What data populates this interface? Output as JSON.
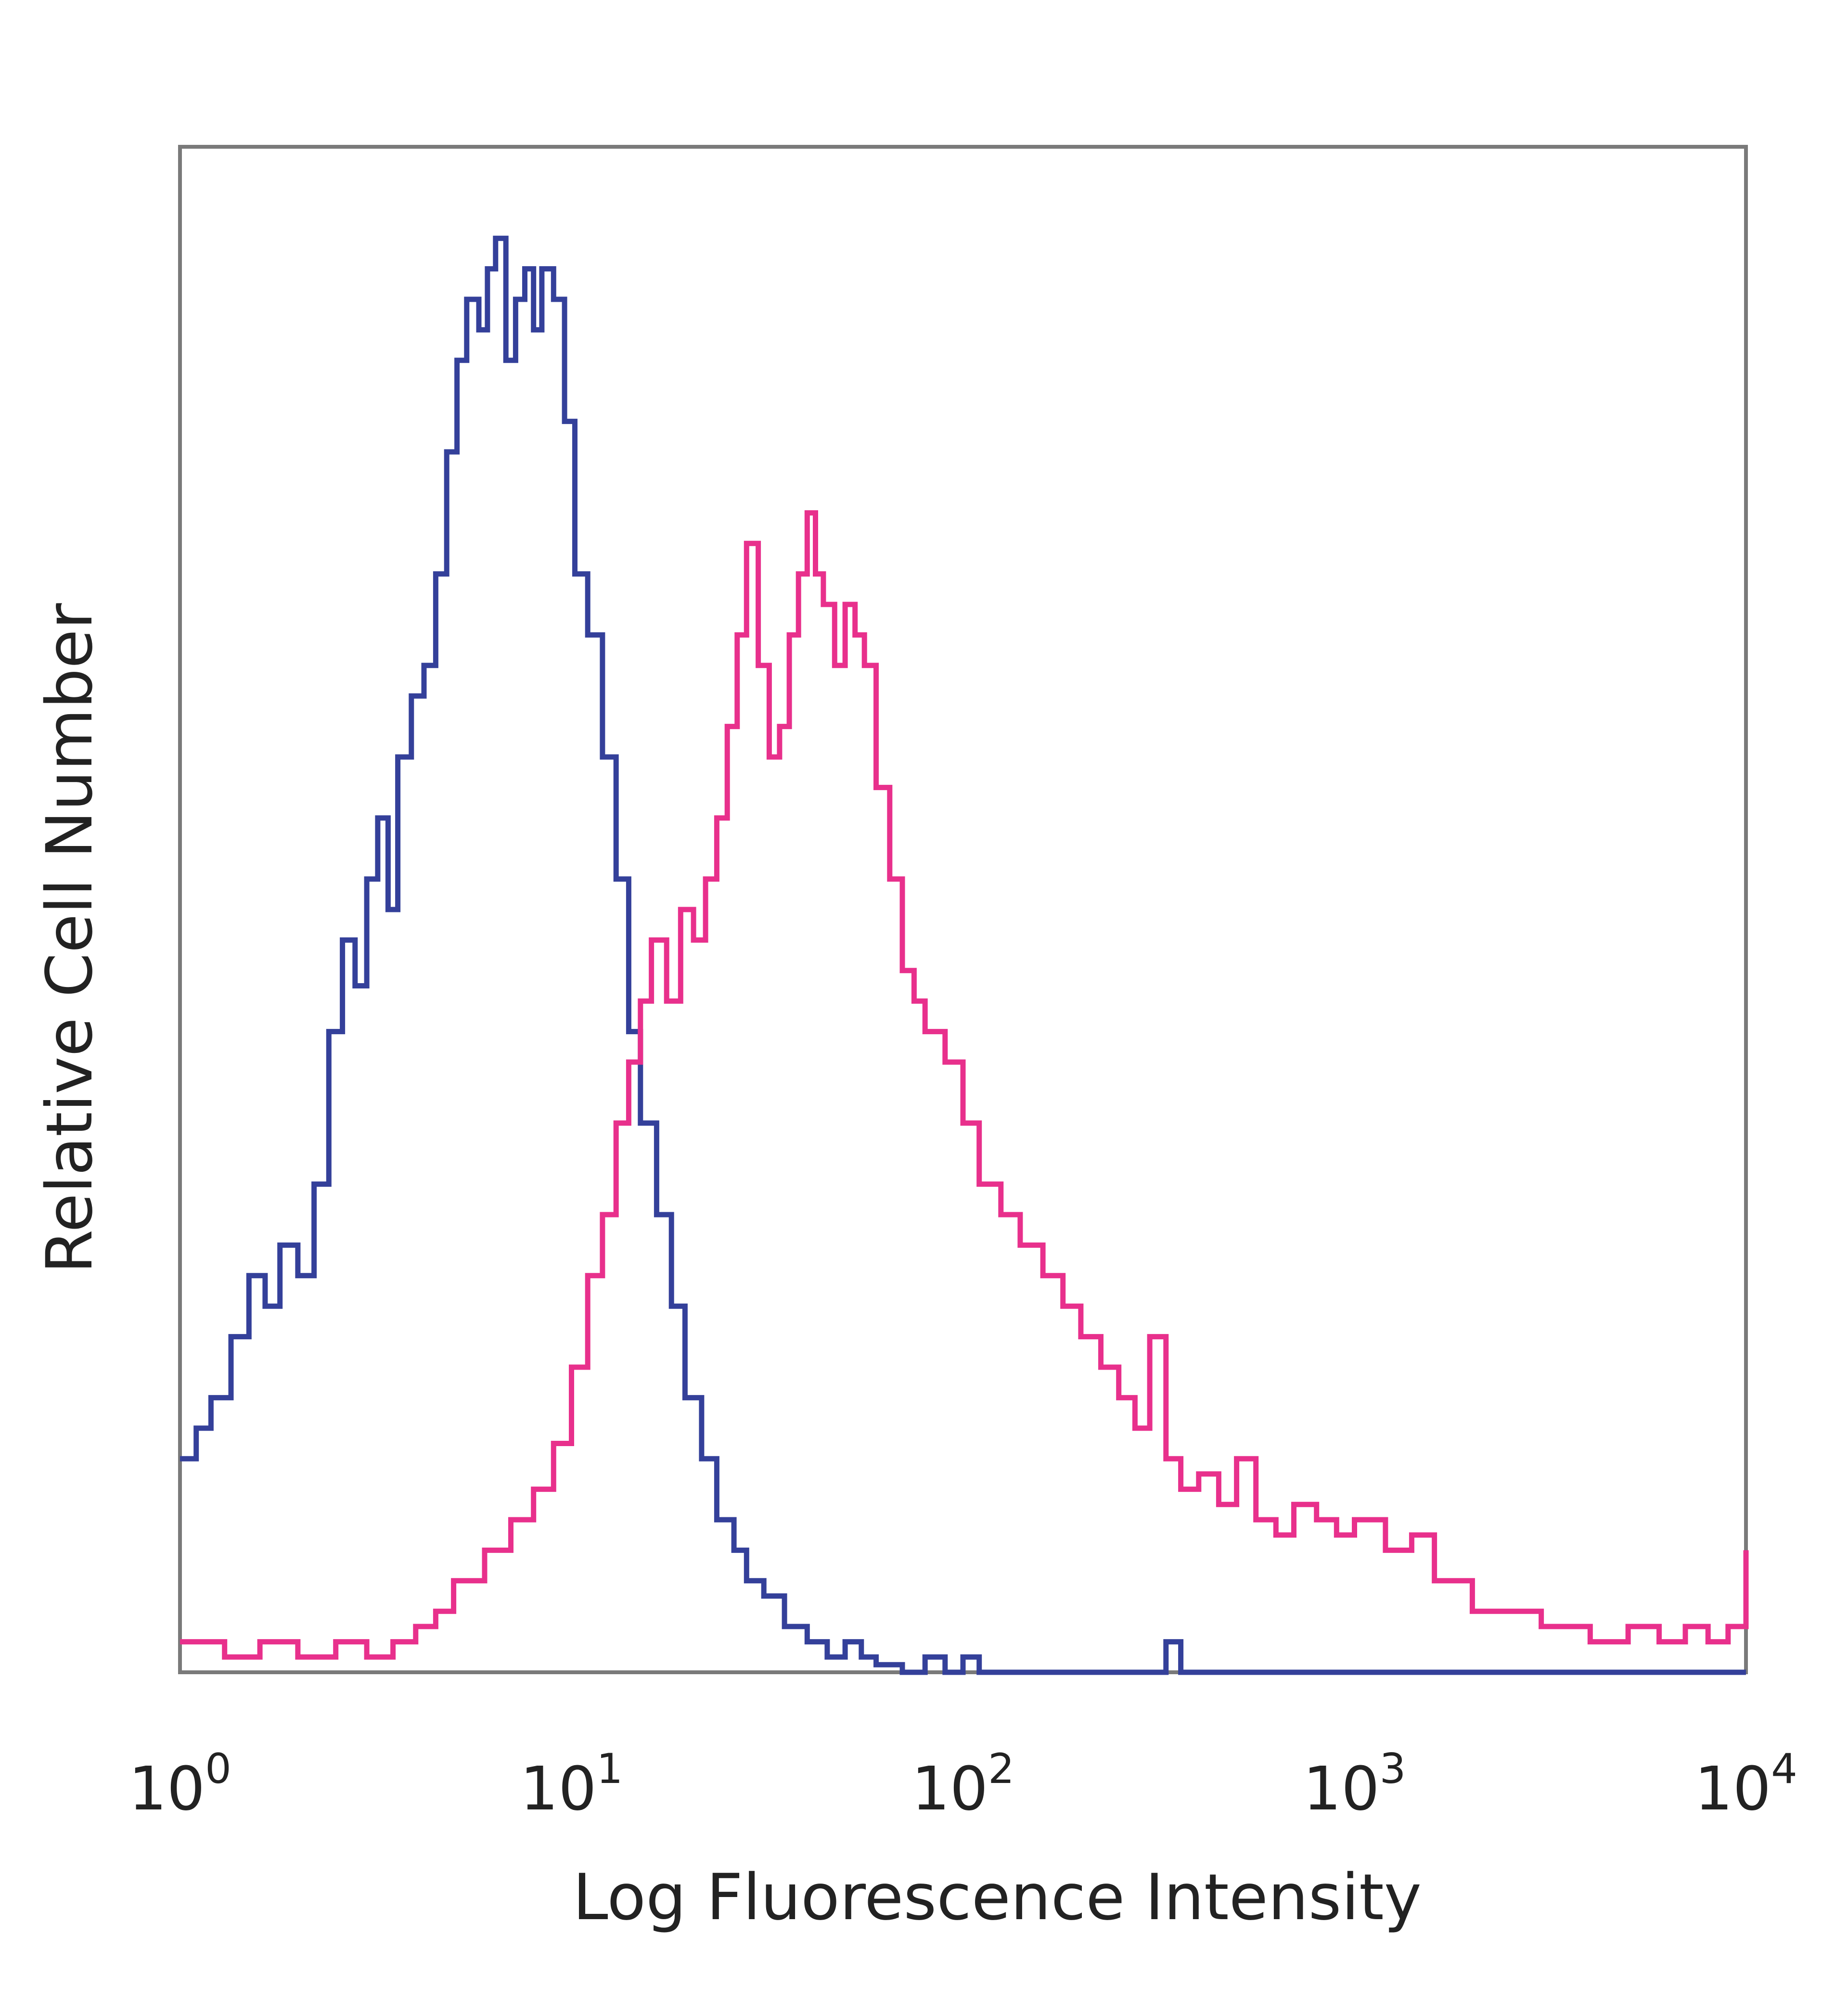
{
  "chart_data": {
    "type": "line",
    "title": "",
    "xlabel": "Log Fluorescence Intensity",
    "ylabel": "Relative Cell Number",
    "x_scale": "log",
    "xlim": [
      1,
      10000
    ],
    "ylim": [
      0,
      100
    ],
    "grid": false,
    "legend": "none",
    "x_ticks": [
      {
        "base": "10",
        "exp": "0",
        "value": 1
      },
      {
        "base": "10",
        "exp": "1",
        "value": 10
      },
      {
        "base": "10",
        "exp": "2",
        "value": 100
      },
      {
        "base": "10",
        "exp": "3",
        "value": 1000
      },
      {
        "base": "10",
        "exp": "4",
        "value": 10000
      }
    ],
    "series": [
      {
        "color": "#34409a",
        "points": [
          [
            1.0,
            14
          ],
          [
            1.1,
            16
          ],
          [
            1.2,
            18
          ],
          [
            1.35,
            22
          ],
          [
            1.5,
            26
          ],
          [
            1.65,
            24
          ],
          [
            1.8,
            28
          ],
          [
            2.0,
            26
          ],
          [
            2.2,
            32
          ],
          [
            2.4,
            42
          ],
          [
            2.6,
            48
          ],
          [
            2.8,
            45
          ],
          [
            3.0,
            52
          ],
          [
            3.2,
            56
          ],
          [
            3.4,
            50
          ],
          [
            3.6,
            60
          ],
          [
            3.9,
            64
          ],
          [
            4.2,
            66
          ],
          [
            4.5,
            72
          ],
          [
            4.8,
            80
          ],
          [
            5.1,
            86
          ],
          [
            5.4,
            90
          ],
          [
            5.8,
            88
          ],
          [
            6.1,
            92
          ],
          [
            6.4,
            94
          ],
          [
            6.8,
            86
          ],
          [
            7.2,
            90
          ],
          [
            7.6,
            92
          ],
          [
            8.0,
            88
          ],
          [
            8.4,
            92
          ],
          [
            9.0,
            90
          ],
          [
            9.6,
            82
          ],
          [
            10.2,
            72
          ],
          [
            11.0,
            68
          ],
          [
            12.0,
            60
          ],
          [
            13.0,
            52
          ],
          [
            14.0,
            42
          ],
          [
            15.0,
            36
          ],
          [
            16.5,
            30
          ],
          [
            18.0,
            24
          ],
          [
            19.5,
            18
          ],
          [
            21.5,
            14
          ],
          [
            23.5,
            10
          ],
          [
            26.0,
            8
          ],
          [
            28.0,
            6
          ],
          [
            31.0,
            5
          ],
          [
            35.0,
            3
          ],
          [
            40.0,
            2
          ],
          [
            45.0,
            1
          ],
          [
            50.0,
            2
          ],
          [
            55.0,
            1
          ],
          [
            60.0,
            0.5
          ],
          [
            70.0,
            0
          ],
          [
            80.0,
            1
          ],
          [
            90.0,
            0
          ],
          [
            100.0,
            1
          ],
          [
            110.0,
            0
          ],
          [
            150.0,
            0
          ],
          [
            300.0,
            0
          ],
          [
            330.0,
            2
          ],
          [
            360.0,
            0
          ],
          [
            1000.0,
            0
          ],
          [
            10000.0,
            0
          ]
        ]
      },
      {
        "color": "#e8308c",
        "points": [
          [
            1.0,
            2
          ],
          [
            1.3,
            1
          ],
          [
            1.6,
            2
          ],
          [
            2.0,
            1
          ],
          [
            2.5,
            2
          ],
          [
            3.0,
            1
          ],
          [
            3.5,
            2
          ],
          [
            4.0,
            3
          ],
          [
            4.5,
            4
          ],
          [
            5.0,
            6
          ],
          [
            6.0,
            8
          ],
          [
            7.0,
            10
          ],
          [
            8.0,
            12
          ],
          [
            9.0,
            15
          ],
          [
            10.0,
            20
          ],
          [
            11.0,
            26
          ],
          [
            12.0,
            30
          ],
          [
            13.0,
            36
          ],
          [
            14.0,
            40
          ],
          [
            15.0,
            44
          ],
          [
            16.0,
            48
          ],
          [
            17.5,
            44
          ],
          [
            19.0,
            50
          ],
          [
            20.5,
            48
          ],
          [
            22.0,
            52
          ],
          [
            23.5,
            56
          ],
          [
            25.0,
            62
          ],
          [
            26.5,
            68
          ],
          [
            28.0,
            74
          ],
          [
            30.0,
            66
          ],
          [
            32.0,
            60
          ],
          [
            34.0,
            62
          ],
          [
            36.0,
            68
          ],
          [
            38.0,
            72
          ],
          [
            40.0,
            76
          ],
          [
            42.0,
            72
          ],
          [
            44.0,
            70
          ],
          [
            47.0,
            66
          ],
          [
            50.0,
            70
          ],
          [
            53.0,
            68
          ],
          [
            56.0,
            66
          ],
          [
            60.0,
            58
          ],
          [
            65.0,
            52
          ],
          [
            70.0,
            46
          ],
          [
            75.0,
            44
          ],
          [
            80.0,
            42
          ],
          [
            90.0,
            40
          ],
          [
            100.0,
            36
          ],
          [
            110.0,
            32
          ],
          [
            125.0,
            30
          ],
          [
            140.0,
            28
          ],
          [
            160.0,
            26
          ],
          [
            180.0,
            24
          ],
          [
            200.0,
            22
          ],
          [
            225.0,
            20
          ],
          [
            250.0,
            18
          ],
          [
            275.0,
            16
          ],
          [
            300.0,
            22
          ],
          [
            330.0,
            14
          ],
          [
            360.0,
            12
          ],
          [
            400.0,
            13
          ],
          [
            450.0,
            11
          ],
          [
            500.0,
            14
          ],
          [
            560.0,
            10
          ],
          [
            630.0,
            9
          ],
          [
            700.0,
            11
          ],
          [
            800.0,
            10
          ],
          [
            900.0,
            9
          ],
          [
            1000.0,
            10
          ],
          [
            1200.0,
            8
          ],
          [
            1400.0,
            9
          ],
          [
            1600.0,
            6
          ],
          [
            2000.0,
            4
          ],
          [
            2500.0,
            4
          ],
          [
            3000.0,
            3
          ],
          [
            3500.0,
            3
          ],
          [
            4000.0,
            2
          ],
          [
            5000.0,
            3
          ],
          [
            6000.0,
            2
          ],
          [
            7000.0,
            3
          ],
          [
            8000.0,
            2
          ],
          [
            9000.0,
            3
          ],
          [
            10000.0,
            8
          ]
        ]
      }
    ]
  }
}
